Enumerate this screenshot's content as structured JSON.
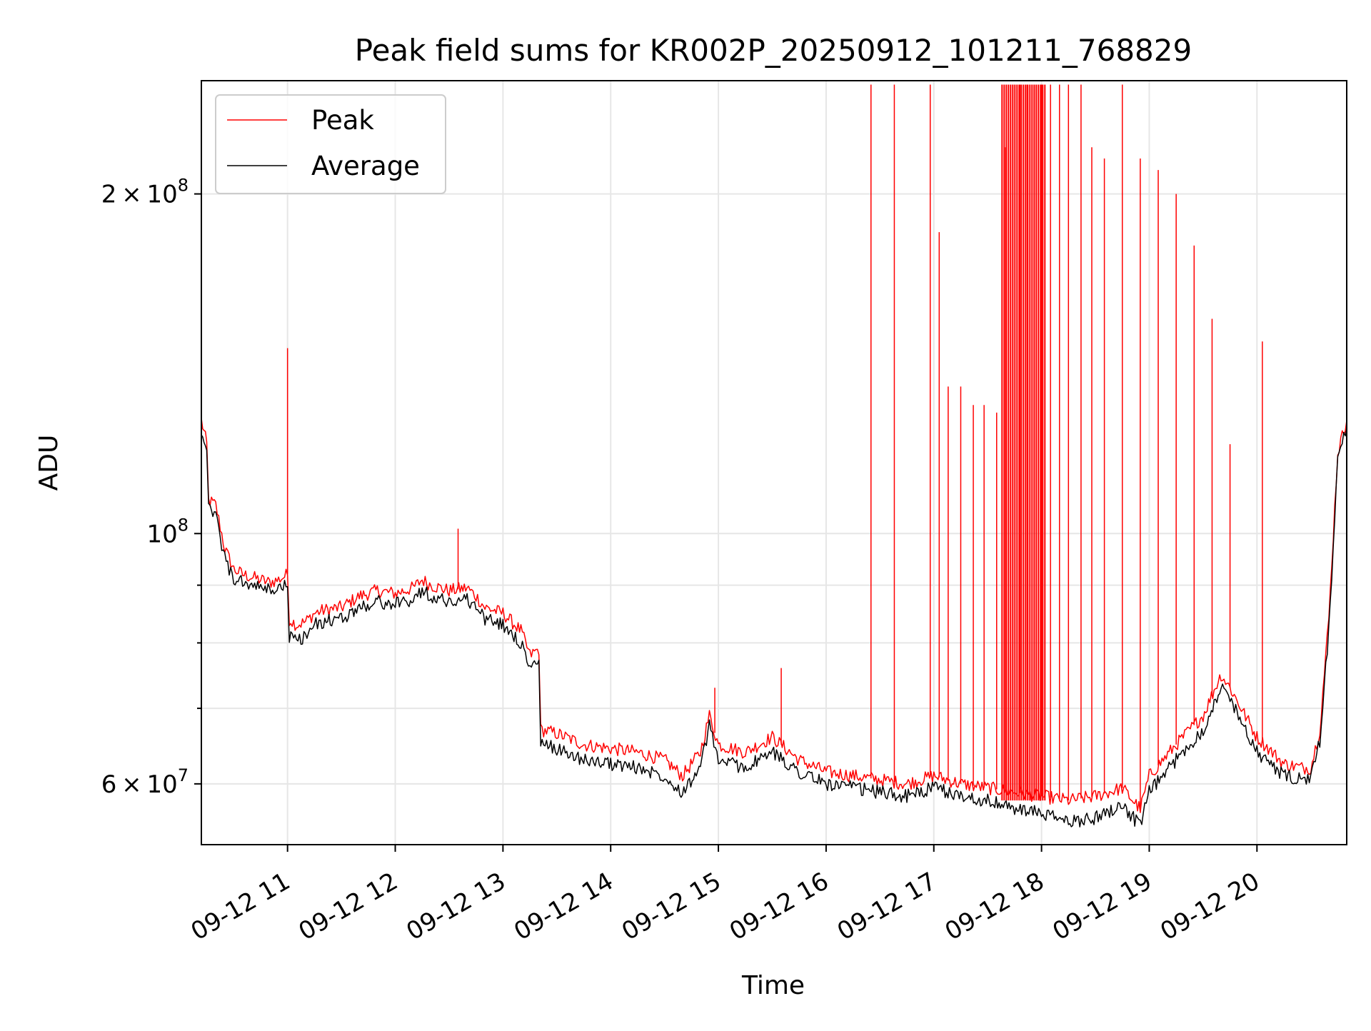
{
  "chart_data": {
    "type": "line",
    "title": "Peak field sums for KR002P_20250912_101211_768829",
    "xlabel": "Time",
    "ylabel": "ADU",
    "y_scale": "log",
    "xlim": [
      "2025-09-12 10:12",
      "2025-09-12 20:50"
    ],
    "ylim": [
      53000000,
      252000000
    ],
    "grid": true,
    "legend_position": "top-left",
    "x_ticks": [
      {
        "value": "2025-09-12 11:00",
        "label": "09-12 11"
      },
      {
        "value": "2025-09-12 12:00",
        "label": "09-12 12"
      },
      {
        "value": "2025-09-12 13:00",
        "label": "09-12 13"
      },
      {
        "value": "2025-09-12 14:00",
        "label": "09-12 14"
      },
      {
        "value": "2025-09-12 15:00",
        "label": "09-12 15"
      },
      {
        "value": "2025-09-12 16:00",
        "label": "09-12 16"
      },
      {
        "value": "2025-09-12 17:00",
        "label": "09-12 17"
      },
      {
        "value": "2025-09-12 18:00",
        "label": "09-12 18"
      },
      {
        "value": "2025-09-12 19:00",
        "label": "09-12 19"
      },
      {
        "value": "2025-09-12 20:00",
        "label": "09-12 20"
      }
    ],
    "y_major_ticks": [
      {
        "value": 60000000,
        "mantissa": "6",
        "exponent": "7"
      },
      {
        "value": 100000000,
        "mantissa": "",
        "exponent": "8"
      },
      {
        "value": 200000000,
        "mantissa": "2",
        "exponent": "8"
      }
    ],
    "y_tick_base": "10",
    "y_tick_times": "×",
    "y_minor_ticks": [
      70000000,
      80000000,
      90000000
    ],
    "series": [
      {
        "name": "Peak",
        "color": "#ff0000",
        "x": [
          "2025-09-12 10:12",
          "2025-09-12 10:15",
          "2025-09-12 10:16",
          "2025-09-12 10:20",
          "2025-09-12 10:25",
          "2025-09-12 10:30",
          "2025-09-12 10:35",
          "2025-09-12 10:40",
          "2025-09-12 10:45",
          "2025-09-12 10:50",
          "2025-09-12 10:55",
          "2025-09-12 11:00",
          "2025-09-12 11:01",
          "2025-09-12 11:05",
          "2025-09-12 11:10",
          "2025-09-12 11:15",
          "2025-09-12 11:20",
          "2025-09-12 11:30",
          "2025-09-12 11:40",
          "2025-09-12 11:50",
          "2025-09-12 12:00",
          "2025-09-12 12:10",
          "2025-09-12 12:15",
          "2025-09-12 12:20",
          "2025-09-12 12:30",
          "2025-09-12 12:40",
          "2025-09-12 12:45",
          "2025-09-12 12:50",
          "2025-09-12 13:00",
          "2025-09-12 13:10",
          "2025-09-12 13:15",
          "2025-09-12 13:20",
          "2025-09-12 13:21",
          "2025-09-12 13:30",
          "2025-09-12 13:45",
          "2025-09-12 14:00",
          "2025-09-12 14:15",
          "2025-09-12 14:30",
          "2025-09-12 14:40",
          "2025-09-12 14:50",
          "2025-09-12 14:55",
          "2025-09-12 15:00",
          "2025-09-12 15:15",
          "2025-09-12 15:30",
          "2025-09-12 15:45",
          "2025-09-12 16:00",
          "2025-09-12 16:15",
          "2025-09-12 16:30",
          "2025-09-12 16:45",
          "2025-09-12 17:00",
          "2025-09-12 17:15",
          "2025-09-12 17:30",
          "2025-09-12 17:45",
          "2025-09-12 18:00",
          "2025-09-12 18:15",
          "2025-09-12 18:30",
          "2025-09-12 18:45",
          "2025-09-12 18:55",
          "2025-09-12 19:00",
          "2025-09-12 19:15",
          "2025-09-12 19:30",
          "2025-09-12 19:40",
          "2025-09-12 19:45",
          "2025-09-12 20:00",
          "2025-09-12 20:15",
          "2025-09-12 20:25",
          "2025-09-12 20:30",
          "2025-09-12 20:35",
          "2025-09-12 20:40",
          "2025-09-12 20:45",
          "2025-09-12 20:50"
        ],
        "y": [
          126000000,
          120000000,
          107000000,
          106000000,
          97000000,
          93000000,
          92000000,
          91500000,
          91000000,
          90500000,
          91000000,
          92000000,
          84000000,
          83000000,
          83500000,
          85000000,
          85500000,
          86000000,
          88000000,
          89000000,
          88500000,
          89500000,
          91000000,
          90000000,
          89000000,
          89500000,
          88000000,
          86000000,
          85000000,
          82000000,
          78000000,
          79000000,
          67000000,
          66500000,
          65000000,
          64500000,
          64000000,
          63000000,
          61000000,
          64000000,
          69000000,
          65000000,
          64000000,
          66000000,
          63000000,
          61500000,
          61000000,
          60500000,
          60000000,
          61000000,
          60000000,
          59500000,
          59000000,
          58500000,
          58000000,
          58500000,
          59500000,
          57000000,
          61000000,
          65000000,
          69000000,
          75000000,
          73000000,
          66000000,
          62500000,
          62000000,
          62000000,
          67000000,
          84000000,
          118000000,
          126000000
        ],
        "spikes": [
          {
            "x": "2025-09-12 11:00",
            "y": 146000000
          },
          {
            "x": "2025-09-12 12:35",
            "y": 101000000
          },
          {
            "x": "2025-09-12 14:58",
            "y": 73000000
          },
          {
            "x": "2025-09-12 15:35",
            "y": 76000000
          },
          {
            "x": "2025-09-12 16:25",
            "y": 250000000
          },
          {
            "x": "2025-09-12 16:38",
            "y": 250000000
          },
          {
            "x": "2025-09-12 16:58",
            "y": 250000000
          },
          {
            "x": "2025-09-12 17:03",
            "y": 185000000
          },
          {
            "x": "2025-09-12 17:08",
            "y": 135000000
          },
          {
            "x": "2025-09-12 17:15",
            "y": 135000000
          },
          {
            "x": "2025-09-12 17:22",
            "y": 130000000
          },
          {
            "x": "2025-09-12 17:28",
            "y": 130000000
          },
          {
            "x": "2025-09-12 17:35",
            "y": 128000000
          },
          {
            "x": "2025-09-12 17:40",
            "y": 220000000
          },
          {
            "x": "2025-09-12 17:44",
            "y": 250000000
          },
          {
            "x": "2025-09-12 17:48",
            "y": 250000000
          },
          {
            "x": "2025-09-12 17:52",
            "y": 250000000
          },
          {
            "x": "2025-09-12 17:56",
            "y": 250000000
          },
          {
            "x": "2025-09-12 18:00",
            "y": 250000000
          },
          {
            "x": "2025-09-12 18:05",
            "y": 250000000
          },
          {
            "x": "2025-09-12 18:10",
            "y": 250000000
          },
          {
            "x": "2025-09-12 18:15",
            "y": 250000000
          },
          {
            "x": "2025-09-12 18:22",
            "y": 250000000
          },
          {
            "x": "2025-09-12 18:28",
            "y": 220000000
          },
          {
            "x": "2025-09-12 18:35",
            "y": 215000000
          },
          {
            "x": "2025-09-12 18:45",
            "y": 250000000
          },
          {
            "x": "2025-09-12 18:55",
            "y": 215000000
          },
          {
            "x": "2025-09-12 19:05",
            "y": 210000000
          },
          {
            "x": "2025-09-12 19:15",
            "y": 200000000
          },
          {
            "x": "2025-09-12 19:25",
            "y": 180000000
          },
          {
            "x": "2025-09-12 19:35",
            "y": 155000000
          },
          {
            "x": "2025-09-12 19:45",
            "y": 120000000
          },
          {
            "x": "2025-09-12 20:03",
            "y": 148000000
          }
        ]
      },
      {
        "name": "Average",
        "color": "#000000",
        "x": [
          "2025-09-12 10:12",
          "2025-09-12 10:15",
          "2025-09-12 10:16",
          "2025-09-12 10:20",
          "2025-09-12 10:25",
          "2025-09-12 10:30",
          "2025-09-12 10:35",
          "2025-09-12 10:40",
          "2025-09-12 10:45",
          "2025-09-12 10:50",
          "2025-09-12 10:55",
          "2025-09-12 11:00",
          "2025-09-12 11:01",
          "2025-09-12 11:05",
          "2025-09-12 11:10",
          "2025-09-12 11:15",
          "2025-09-12 11:20",
          "2025-09-12 11:30",
          "2025-09-12 11:40",
          "2025-09-12 11:50",
          "2025-09-12 12:00",
          "2025-09-12 12:10",
          "2025-09-12 12:15",
          "2025-09-12 12:20",
          "2025-09-12 12:30",
          "2025-09-12 12:40",
          "2025-09-12 12:45",
          "2025-09-12 12:50",
          "2025-09-12 13:00",
          "2025-09-12 13:10",
          "2025-09-12 13:15",
          "2025-09-12 13:20",
          "2025-09-12 13:21",
          "2025-09-12 13:30",
          "2025-09-12 13:45",
          "2025-09-12 14:00",
          "2025-09-12 14:15",
          "2025-09-12 14:30",
          "2025-09-12 14:40",
          "2025-09-12 14:50",
          "2025-09-12 14:55",
          "2025-09-12 15:00",
          "2025-09-12 15:15",
          "2025-09-12 15:30",
          "2025-09-12 15:45",
          "2025-09-12 16:00",
          "2025-09-12 16:15",
          "2025-09-12 16:30",
          "2025-09-12 16:45",
          "2025-09-12 17:00",
          "2025-09-12 17:15",
          "2025-09-12 17:30",
          "2025-09-12 17:45",
          "2025-09-12 18:00",
          "2025-09-12 18:15",
          "2025-09-12 18:30",
          "2025-09-12 18:45",
          "2025-09-12 18:55",
          "2025-09-12 19:00",
          "2025-09-12 19:15",
          "2025-09-12 19:30",
          "2025-09-12 19:40",
          "2025-09-12 19:45",
          "2025-09-12 20:00",
          "2025-09-12 20:15",
          "2025-09-12 20:25",
          "2025-09-12 20:30",
          "2025-09-12 20:35",
          "2025-09-12 20:40",
          "2025-09-12 20:45",
          "2025-09-12 20:50"
        ],
        "y": [
          124000000,
          117000000,
          105000000,
          104000000,
          95000000,
          91000000,
          90500000,
          90000000,
          89500000,
          89000000,
          89500000,
          90000000,
          81000000,
          80500000,
          81000000,
          83000000,
          83500000,
          84000000,
          86000000,
          87000000,
          86500000,
          87500000,
          89000000,
          88000000,
          87000000,
          87500000,
          86000000,
          84000000,
          83000000,
          80000000,
          76000000,
          77000000,
          65000000,
          64500000,
          63000000,
          62500000,
          62000000,
          61000000,
          59000000,
          62000000,
          67500000,
          63000000,
          62000000,
          64000000,
          61500000,
          60000000,
          59500000,
          59000000,
          58500000,
          59500000,
          58500000,
          58000000,
          57000000,
          56500000,
          55500000,
          56000000,
          57500000,
          55000000,
          59000000,
          63000000,
          67000000,
          73000000,
          71500000,
          64000000,
          61000000,
          60500000,
          60500000,
          65500000,
          82000000,
          116000000,
          124000000
        ]
      }
    ]
  }
}
